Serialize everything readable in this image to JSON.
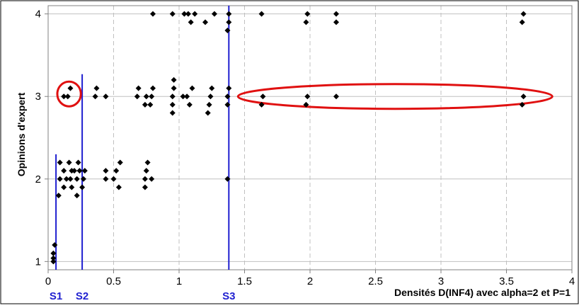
{
  "chart_data": {
    "type": "scatter",
    "title": "",
    "xlabel": "Densités D(INF4) avec alpha=2 et P=1",
    "ylabel": "Opinions d'expert",
    "xlim": [
      0,
      4
    ],
    "ylim": [
      0.9,
      4.1
    ],
    "x_ticks": [
      "0",
      "0.5",
      "1",
      "1.5",
      "2",
      "2.5",
      "3",
      "3.5",
      "4"
    ],
    "y_ticks": [
      "1",
      "2",
      "3",
      "4"
    ],
    "grid": "vertical dashed, horizontal solid",
    "legend": "none",
    "colors": {
      "points": "#000000",
      "thresholds": "#1f1fd0",
      "highlight": "#e01010",
      "grid": "#c0c0c0"
    },
    "thresholds": [
      {
        "label": "S1",
        "x": 0.06,
        "y_from": 0.9,
        "y_to": 2.3
      },
      {
        "label": "S2",
        "x": 0.26,
        "y_from": 0.9,
        "y_to": 3.27
      },
      {
        "label": "S3",
        "x": 1.38,
        "y_from": 0.9,
        "y_to": 4.1
      }
    ],
    "highlights": [
      {
        "shape": "ellipse",
        "cx": 0.16,
        "cy": 3.03,
        "rx": 0.09,
        "ry": 0.15
      },
      {
        "shape": "ellipse",
        "cx": 2.65,
        "cy": 3.0,
        "rx": 1.2,
        "ry": 0.15
      }
    ],
    "points": [
      [
        0.04,
        1.0
      ],
      [
        0.04,
        1.1
      ],
      [
        0.05,
        1.2
      ],
      [
        0.04,
        1.04
      ],
      [
        0.08,
        1.8
      ],
      [
        0.09,
        2.0
      ],
      [
        0.09,
        2.2
      ],
      [
        0.12,
        1.9
      ],
      [
        0.12,
        2.1
      ],
      [
        0.14,
        2.0
      ],
      [
        0.16,
        2.2
      ],
      [
        0.17,
        2.0
      ],
      [
        0.18,
        1.9
      ],
      [
        0.18,
        2.1
      ],
      [
        0.2,
        2.1
      ],
      [
        0.22,
        1.8
      ],
      [
        0.22,
        2.0
      ],
      [
        0.23,
        2.2
      ],
      [
        0.24,
        2.1
      ],
      [
        0.26,
        1.9
      ],
      [
        0.27,
        2.0
      ],
      [
        0.28,
        2.1
      ],
      [
        0.44,
        2.0
      ],
      [
        0.44,
        2.1
      ],
      [
        0.5,
        2.0
      ],
      [
        0.52,
        2.1
      ],
      [
        0.54,
        1.9
      ],
      [
        0.55,
        2.2
      ],
      [
        0.74,
        1.9
      ],
      [
        0.74,
        2.0
      ],
      [
        0.75,
        2.1
      ],
      [
        0.76,
        2.2
      ],
      [
        0.79,
        2.0
      ],
      [
        0.12,
        3.0
      ],
      [
        0.15,
        3.0
      ],
      [
        0.17,
        3.1
      ],
      [
        0.36,
        3.0
      ],
      [
        0.37,
        3.1
      ],
      [
        0.44,
        3.0
      ],
      [
        0.68,
        3.0
      ],
      [
        0.69,
        3.1
      ],
      [
        0.74,
        2.9
      ],
      [
        0.75,
        3.0
      ],
      [
        0.78,
        2.9
      ],
      [
        0.79,
        3.0
      ],
      [
        0.8,
        3.1
      ],
      [
        0.95,
        2.8
      ],
      [
        0.95,
        2.9
      ],
      [
        0.95,
        3.0
      ],
      [
        0.96,
        3.1
      ],
      [
        0.96,
        3.2
      ],
      [
        1.03,
        3.0
      ],
      [
        1.06,
        3.0
      ],
      [
        1.08,
        2.9
      ],
      [
        1.1,
        3.1
      ],
      [
        1.22,
        2.8
      ],
      [
        1.23,
        2.9
      ],
      [
        1.24,
        3.0
      ],
      [
        1.25,
        3.1
      ],
      [
        1.37,
        2.9
      ],
      [
        1.37,
        3.0
      ],
      [
        1.38,
        3.1
      ],
      [
        1.63,
        2.9
      ],
      [
        1.64,
        3.0
      ],
      [
        1.97,
        2.9
      ],
      [
        1.98,
        3.0
      ],
      [
        2.2,
        3.0
      ],
      [
        3.62,
        2.9
      ],
      [
        3.63,
        3.0
      ],
      [
        0.8,
        4.0
      ],
      [
        0.95,
        4.0
      ],
      [
        1.04,
        4.0
      ],
      [
        1.07,
        4.0
      ],
      [
        1.09,
        3.9
      ],
      [
        1.12,
        4.0
      ],
      [
        1.2,
        3.9
      ],
      [
        1.27,
        4.0
      ],
      [
        1.37,
        3.8
      ],
      [
        1.38,
        3.9
      ],
      [
        1.38,
        4.0
      ],
      [
        1.63,
        4.0
      ],
      [
        1.97,
        3.9
      ],
      [
        1.98,
        4.0
      ],
      [
        2.2,
        3.9
      ],
      [
        2.2,
        4.0
      ],
      [
        3.62,
        3.9
      ],
      [
        3.63,
        4.0
      ],
      [
        1.37,
        2.0
      ]
    ]
  }
}
